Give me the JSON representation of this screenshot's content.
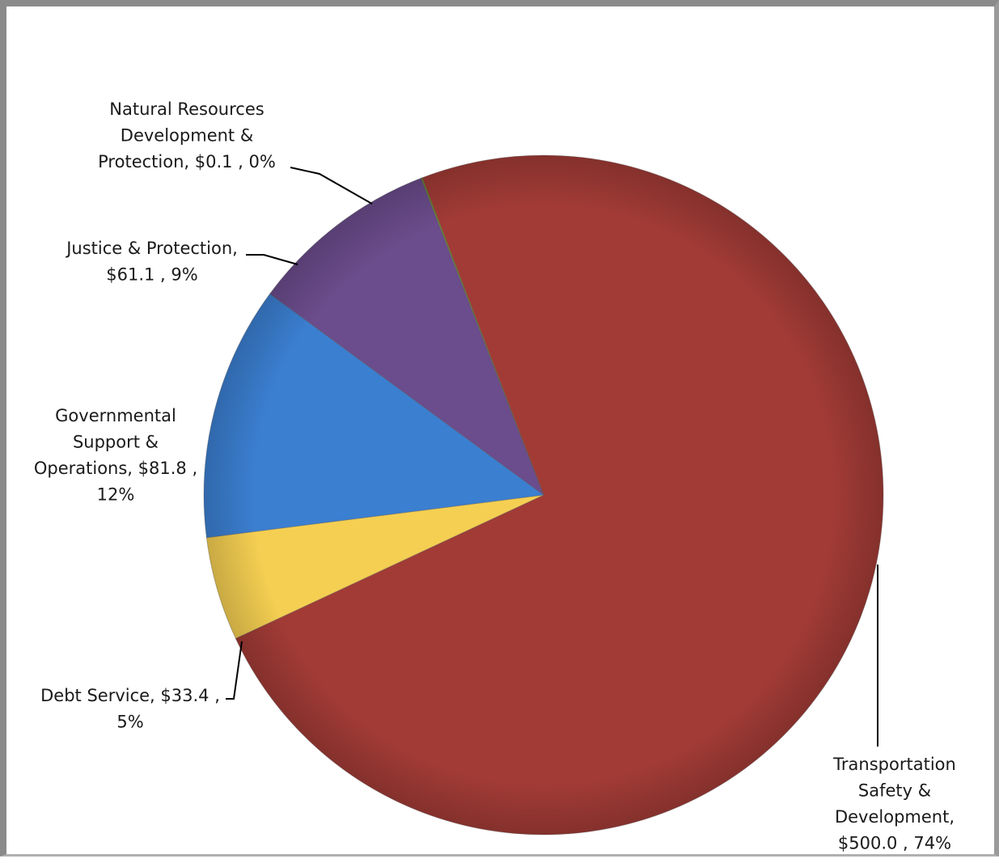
{
  "chart_data": {
    "type": "pie",
    "start_angle_deg": -21.1,
    "slices": [
      {
        "name": "Transportation Safety & Development",
        "value": 500.0,
        "percent": 74,
        "color": "#a23b36",
        "label_lines": [
          "Transportation",
          "Safety &",
          "Development,",
          "$500.0 , 74%"
        ]
      },
      {
        "name": "Debt Service",
        "value": 33.4,
        "percent": 5,
        "color": "#f5cf52",
        "label_lines": [
          "Debt Service, $33.4 ,",
          "5%"
        ]
      },
      {
        "name": "Governmental Support & Operations",
        "value": 81.8,
        "percent": 12,
        "color": "#3b7fd1",
        "label_lines": [
          "Governmental",
          "Support &",
          "Operations, $81.8 ,",
          "12%"
        ]
      },
      {
        "name": "Justice & Protection",
        "value": 61.1,
        "percent": 9,
        "color": "#6b4c8c",
        "label_lines": [
          "Justice & Protection,",
          "$61.1 , 9%"
        ]
      },
      {
        "name": "Natural Resources Development & Protection",
        "value": 0.1,
        "percent": 0,
        "color": "#6f8a2f",
        "label_lines": [
          "Natural Resources",
          "Development &",
          "Protection, $0.1 , 0%"
        ]
      }
    ]
  }
}
